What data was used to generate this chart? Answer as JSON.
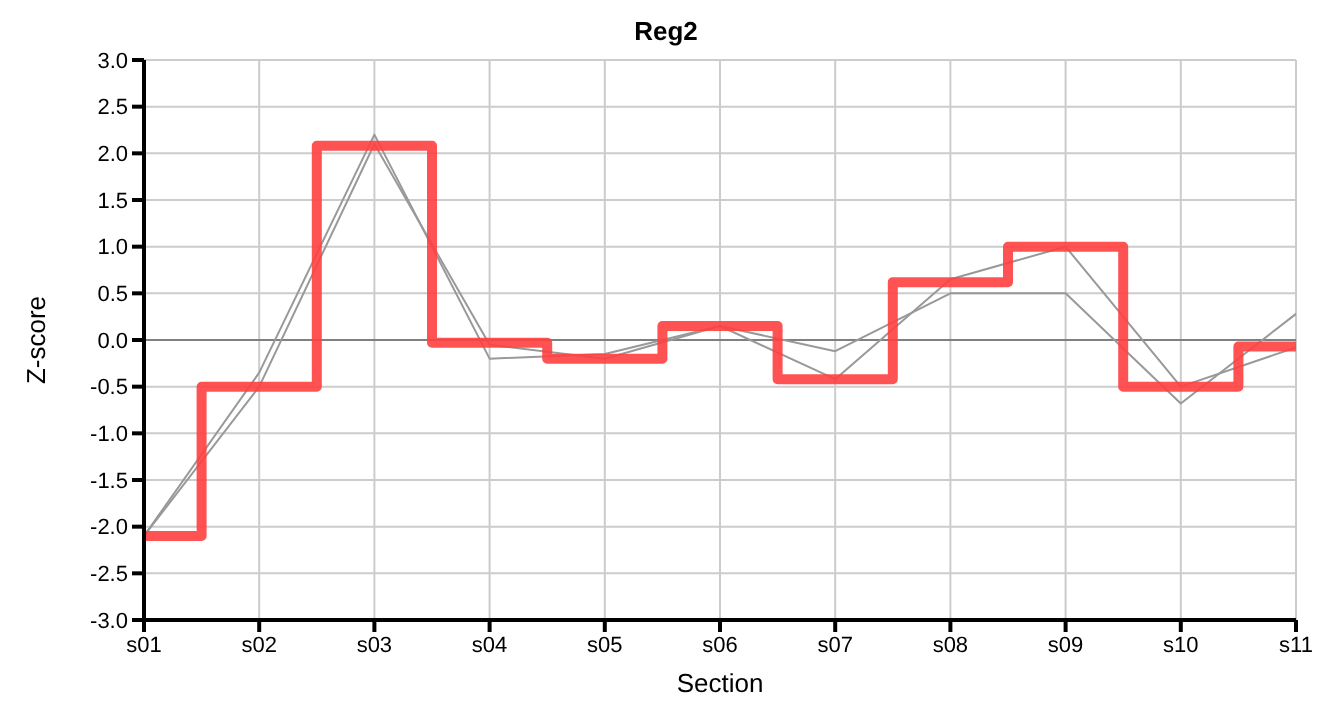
{
  "chart_data": {
    "type": "line",
    "title": "Reg2",
    "xlabel": "Section",
    "ylabel": "Z-score",
    "categories": [
      "s01",
      "s02",
      "s03",
      "s04",
      "s05",
      "s06",
      "s07",
      "s08",
      "s09",
      "s10",
      "s11"
    ],
    "series": [
      {
        "color": "#999999",
        "values": [
          -2.1,
          -0.35,
          2.2,
          -0.2,
          -0.15,
          0.15,
          -0.12,
          0.5,
          0.5,
          -0.68,
          0.28
        ]
      },
      {
        "color": "#999999",
        "values": [
          -2.1,
          -0.5,
          2.1,
          -0.05,
          -0.2,
          0.15,
          -0.42,
          0.65,
          1.0,
          -0.5,
          -0.08
        ]
      },
      {
        "type": "step",
        "color": "#ff4040",
        "values": [
          -2.1,
          -0.5,
          2.08,
          -0.03,
          -0.2,
          0.15,
          -0.42,
          0.62,
          1.0,
          -0.5,
          -0.07
        ]
      }
    ],
    "ylim": [
      -3,
      3
    ],
    "yticks": [
      {
        "value": -3,
        "label": "-3.0"
      },
      {
        "value": -2.5,
        "label": "-2.5"
      },
      {
        "value": -2,
        "label": "-2.0"
      },
      {
        "value": -1.5,
        "label": "-1.5"
      },
      {
        "value": -1,
        "label": "-1.0"
      },
      {
        "value": -0.5,
        "label": "-0.5"
      },
      {
        "value": 0,
        "label": "0.0"
      },
      {
        "value": 0.5,
        "label": "0.5"
      },
      {
        "value": 1,
        "label": "1.0"
      },
      {
        "value": 1.5,
        "label": "1.5"
      },
      {
        "value": 2,
        "label": "2.0"
      },
      {
        "value": 2.5,
        "label": "2.5"
      },
      {
        "value": 3,
        "label": "3.0"
      }
    ],
    "grid": true,
    "legend": false,
    "marker": "none",
    "line_style": "solid",
    "ref_lines": [
      {
        "axis": "y",
        "value": 0,
        "color": "#808080"
      }
    ]
  }
}
